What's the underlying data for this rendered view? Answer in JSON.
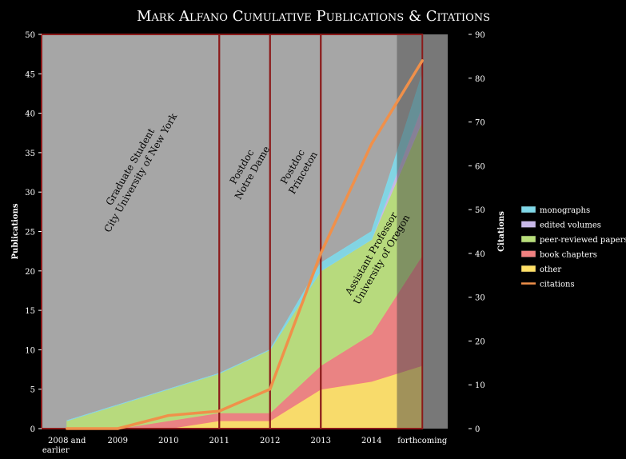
{
  "chart_data": {
    "type": "area",
    "title": "Mark Alfano Cumulative Publications & Citations",
    "categories": [
      "2008 and earlier",
      "2009",
      "2010",
      "2011",
      "2012",
      "2013",
      "2014",
      "forthcoming"
    ],
    "ylabel_left": "Publications",
    "ylabel_right": "Citations",
    "ylim_left": [
      0,
      50
    ],
    "yticks_left": [
      0,
      5,
      10,
      15,
      20,
      25,
      30,
      35,
      40,
      45,
      50
    ],
    "ylim_right": [
      0,
      90
    ],
    "yticks_right": [
      0,
      10,
      20,
      30,
      40,
      50,
      60,
      70,
      80,
      90
    ],
    "stacked_series": [
      {
        "name": "other",
        "color": "#ffe066",
        "values": [
          0,
          0,
          0,
          1,
          1,
          5,
          6,
          8
        ]
      },
      {
        "name": "book chapters",
        "color": "#f08080",
        "values": [
          0,
          0,
          1,
          1,
          1,
          3,
          6,
          14
        ]
      },
      {
        "name": "peer-reviewed papers",
        "color": "#b8de7a",
        "values": [
          1,
          3,
          4,
          5,
          8,
          12,
          12,
          17
        ]
      },
      {
        "name": "edited volumes",
        "color": "#c8b8e8",
        "values": [
          0,
          0,
          0,
          0,
          0,
          0,
          0,
          2
        ]
      },
      {
        "name": "monographs",
        "color": "#7fd8e8",
        "values": [
          0,
          0,
          0,
          0,
          0,
          1,
          1,
          4
        ]
      }
    ],
    "line_series": {
      "name": "citations",
      "color": "#f0904a",
      "axis": "right",
      "values": [
        0,
        0,
        3,
        4,
        9,
        40,
        65,
        84
      ]
    },
    "legend_order": [
      "monographs",
      "edited volumes",
      "peer-reviewed papers",
      "book chapters",
      "other",
      "citations"
    ],
    "legend_position": "right",
    "periods": [
      {
        "lines": [
          "Graduate Student",
          "City University of New York"
        ],
        "start": 0,
        "end": 3.5
      },
      {
        "lines": [
          "Postdoc",
          "Notre Dame"
        ],
        "start": 3.5,
        "end": 4.5
      },
      {
        "lines": [
          "Postdoc",
          "Princeton"
        ],
        "start": 4.5,
        "end": 5.5
      },
      {
        "lines": [
          "Assistant Professor",
          "University of Oregon"
        ],
        "start": 5.5,
        "end": 7.5
      }
    ],
    "forthcoming_shaded": true
  }
}
